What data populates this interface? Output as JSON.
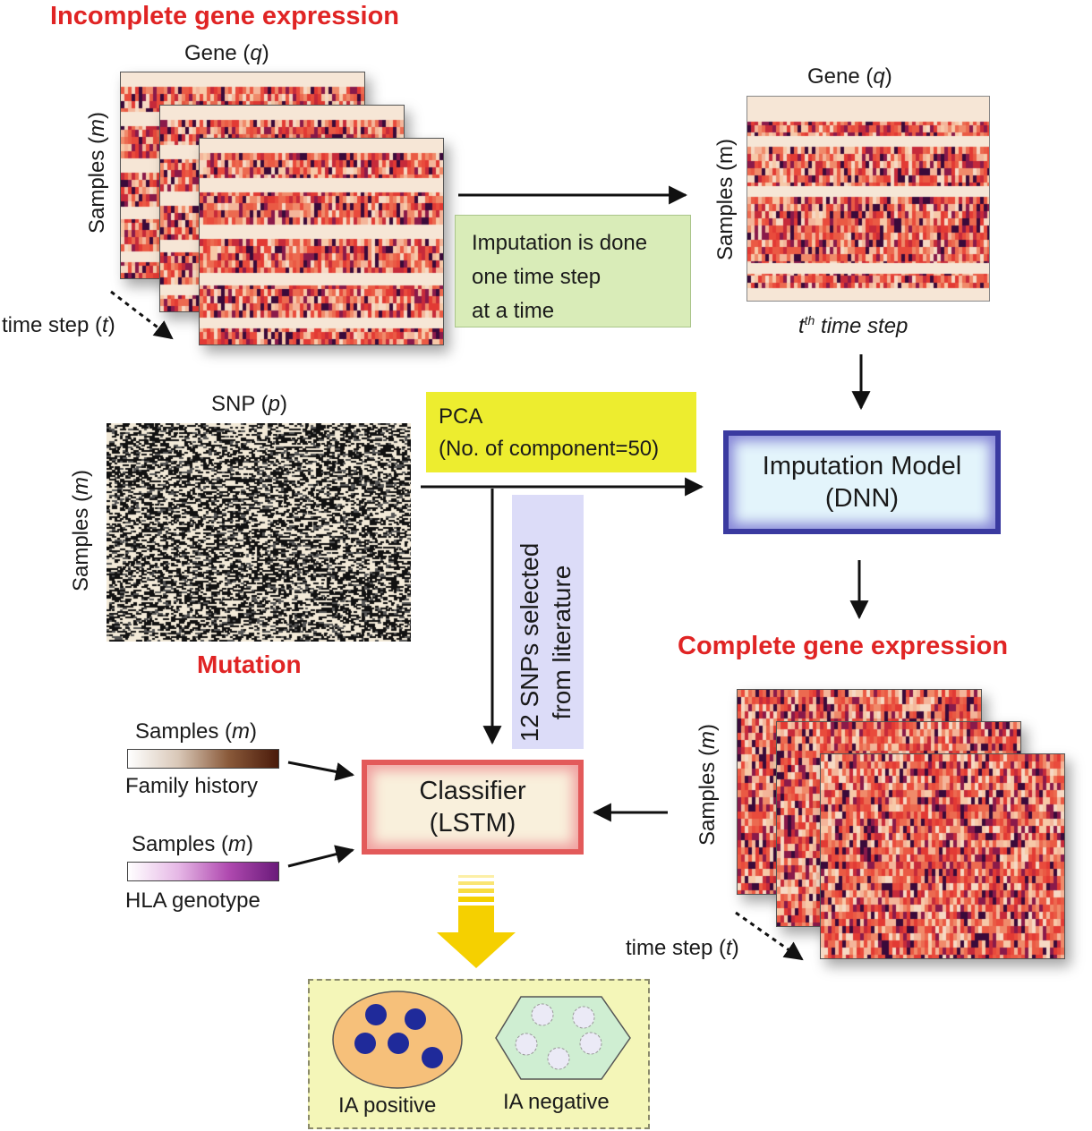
{
  "incomplete": {
    "title": "Incomplete gene expression",
    "gene_label": "Gene (",
    "gene_var": "q",
    "samples_label": "Samples (",
    "samples_var": "m",
    "time_label": "time step (",
    "time_var": "t"
  },
  "imputation_note": {
    "line1": "Imputation is done",
    "line2": "one time step",
    "line3": "at a time"
  },
  "tth": {
    "gene_label": "Gene (",
    "gene_var": "q",
    "samples_label": "Samples (m)",
    "caption_t": "t",
    "caption_sup": "th",
    "caption_rest": " time step"
  },
  "snp": {
    "label": "SNP (",
    "var": "p",
    "samples_label": "Samples (",
    "samples_var": "m",
    "caption": "Mutation"
  },
  "pca": {
    "line1": "PCA",
    "line2": "(No. of component=50)"
  },
  "snp_selected": {
    "line1": "12 SNPs selected",
    "line2": "from literature"
  },
  "imputation_model": {
    "line1": "Imputation Model",
    "line2": "(DNN)"
  },
  "complete": {
    "title": "Complete gene expression",
    "samples_label": "Samples (",
    "samples_var": "m",
    "time_label": "time step (",
    "time_var": "t"
  },
  "classifier": {
    "line1": "Classifier",
    "line2": "(LSTM)"
  },
  "family": {
    "samples_label": "Samples (",
    "samples_var": "m",
    "caption": "Family history"
  },
  "hla": {
    "samples_label": "Samples (",
    "samples_var": "m",
    "caption": "HLA genotype"
  },
  "output": {
    "positive": "IA positive",
    "negative": "IA negative"
  },
  "colors": {
    "heat_light": "#f6e6d6",
    "heat_red": "#e84a3a",
    "heat_dark": "#2a0a3a",
    "header_red": "#e02424",
    "dnn_border": "#3a3aa0",
    "lstm_border": "#e35a5a",
    "pca_yellow": "#eded2f",
    "note_green": "#d9ecb8",
    "snp_lavender": "#dcdcf8",
    "arrow_yellow": "#f5d000",
    "positive_dot": "#1f2a9a",
    "positive_fill": "#f6c07a",
    "negative_fill": "#cfeed2"
  }
}
